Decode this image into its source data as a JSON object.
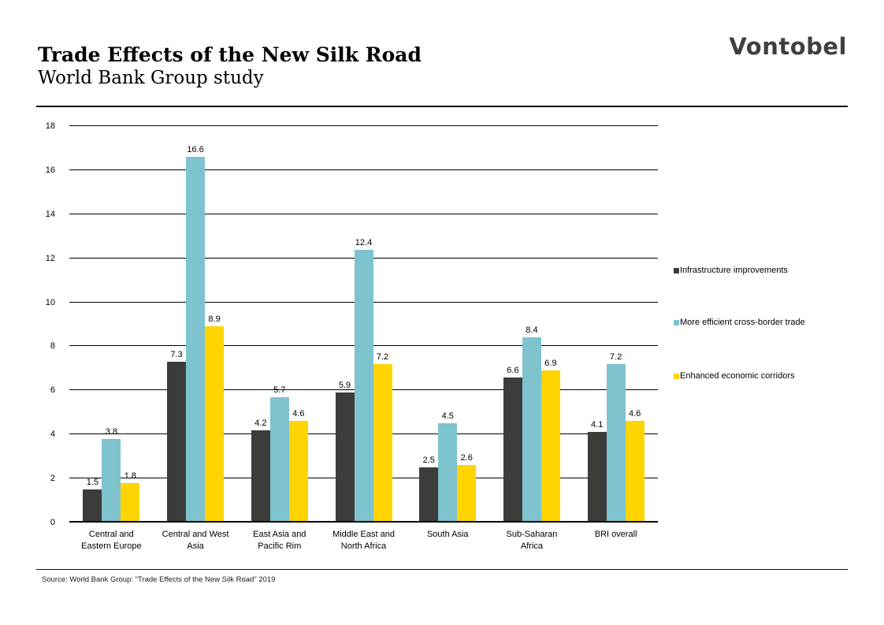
{
  "header": {
    "title": "Trade Effects of the New Silk Road",
    "subtitle": "World Bank Group study",
    "logo_text": "Vontobel"
  },
  "chart_data": {
    "type": "bar",
    "title": "Trade Effects of the New Silk Road — World Bank Group study",
    "categories": [
      "Central and Eastern Europe",
      "Central and West Asia",
      "East Asia and Pacific Rim",
      "Middle East and North Africa",
      "South Asia",
      "Sub-Saharan Africa",
      "BRI overall"
    ],
    "series": [
      {
        "name": "Infrastructure improvements",
        "color": "#3c3c3b",
        "values": [
          1.5,
          7.3,
          4.2,
          5.9,
          2.5,
          6.6,
          4.1
        ]
      },
      {
        "name": "More efficient cross-border trade",
        "color": "#7ec3ce",
        "values": [
          3.8,
          16.6,
          5.7,
          12.4,
          4.5,
          8.4,
          7.2
        ]
      },
      {
        "name": "Enhanced economic corridors",
        "color": "#ffd400",
        "values": [
          1.8,
          8.9,
          4.6,
          7.2,
          2.6,
          6.9,
          4.6
        ]
      }
    ],
    "xlabel": "",
    "ylabel": "",
    "ylim": [
      0,
      18
    ],
    "yticks": [
      0,
      2,
      4,
      6,
      8,
      10,
      12,
      14,
      16,
      18
    ],
    "grid": true,
    "legend_position": "right",
    "value_labels": true
  },
  "footer": {
    "source": "Source: World Bank Group: \"Trade Effects of the New Silk Road\" 2019"
  }
}
